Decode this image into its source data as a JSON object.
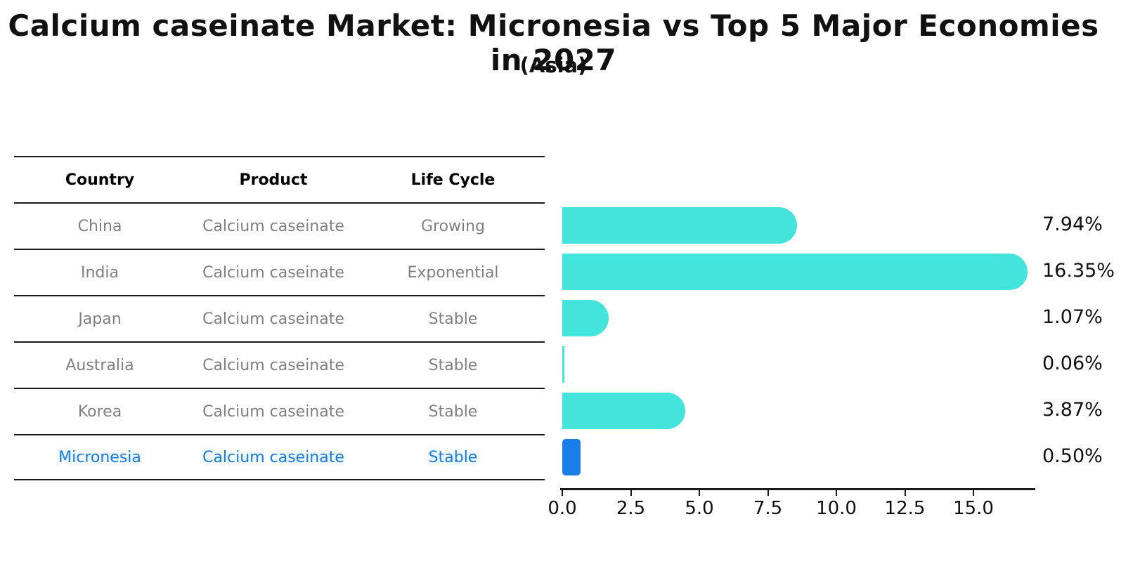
{
  "header": {
    "title": "Calcium caseinate Market: Micronesia vs Top 5 Major Economies in 2027",
    "subtitle": "(Asia)"
  },
  "table": {
    "columns": [
      "Country",
      "Product",
      "Life Cycle"
    ],
    "rows": [
      {
        "country": "China",
        "product": "Calcium caseinate",
        "life_cycle": "Growing"
      },
      {
        "country": "India",
        "product": "Calcium caseinate",
        "life_cycle": "Exponential"
      },
      {
        "country": "Japan",
        "product": "Calcium caseinate",
        "life_cycle": "Stable"
      },
      {
        "country": "Australia",
        "product": "Calcium caseinate",
        "life_cycle": "Stable"
      },
      {
        "country": "Korea",
        "product": "Calcium caseinate",
        "life_cycle": "Stable"
      },
      {
        "country": "Micronesia",
        "product": "Calcium caseinate",
        "life_cycle": "Stable"
      }
    ]
  },
  "chart_data": {
    "type": "bar",
    "orientation": "horizontal",
    "title": "Calcium caseinate Market: Micronesia vs Top 5 Major Economies in 2027",
    "subtitle": "(Asia)",
    "categories": [
      "China",
      "India",
      "Japan",
      "Australia",
      "Korea",
      "Micronesia"
    ],
    "values": [
      7.94,
      16.35,
      1.07,
      0.06,
      3.87,
      0.5
    ],
    "value_labels": [
      "7.94%",
      "16.35%",
      "1.07%",
      "0.06%",
      "3.87%",
      "0.50%"
    ],
    "xlabel": "",
    "ylabel": "",
    "xlim": [
      0,
      17.25
    ],
    "xticks": [
      "0.0",
      "2.5",
      "5.0",
      "7.5",
      "10.0",
      "12.5",
      "15.0"
    ],
    "xtick_values": [
      0,
      2.5,
      5,
      7.5,
      10,
      12.5,
      15
    ],
    "grid": false,
    "legend": false,
    "bar_color": "#44e4dc",
    "highlight_color": "#1b7de8",
    "highlight_index": 5,
    "highlight_category": "Micronesia"
  }
}
